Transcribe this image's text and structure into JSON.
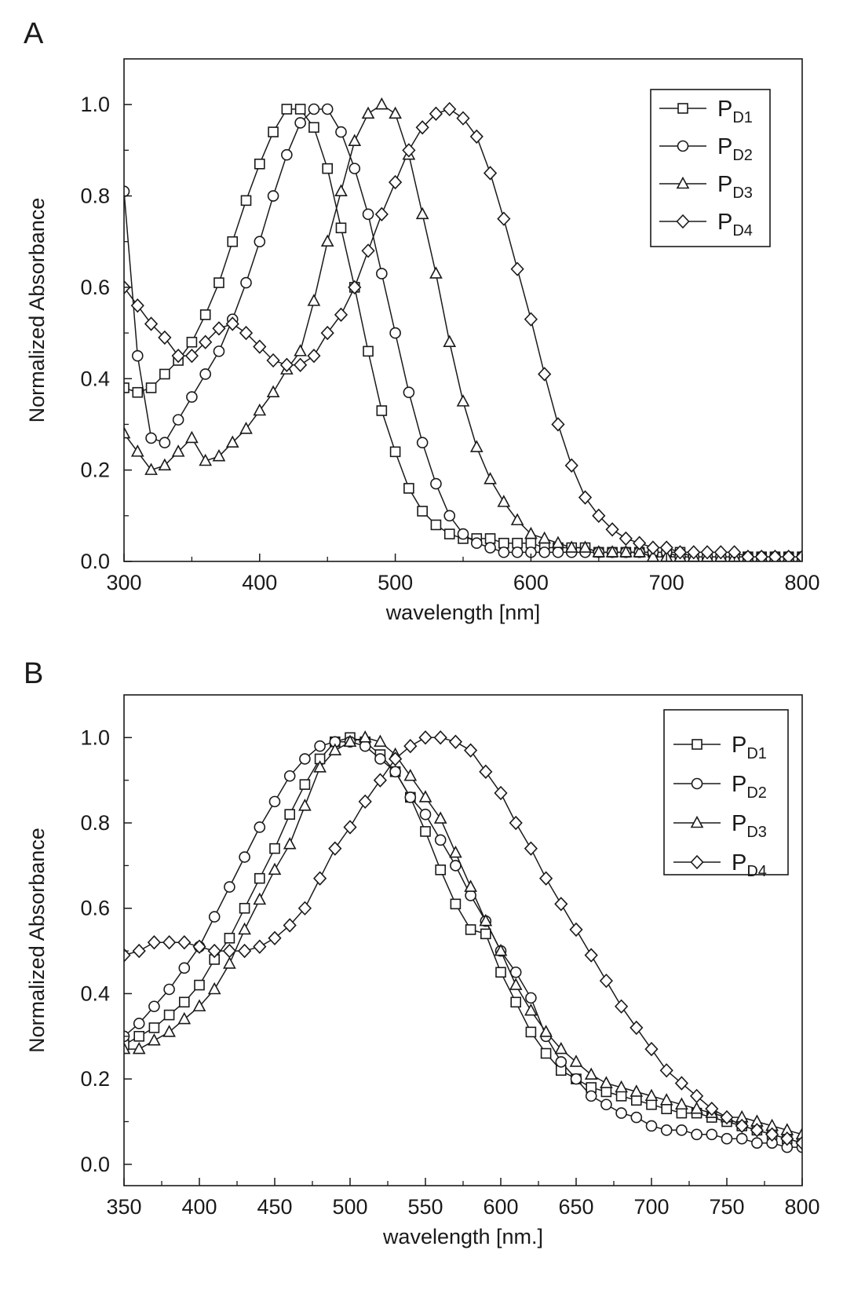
{
  "chart_data": [
    {
      "type": "line",
      "panel_label": "A",
      "xlabel": "wavelength [nm]",
      "ylabel": "Normalized Absorbance",
      "xlim": [
        300,
        800
      ],
      "ylim": [
        0.0,
        1.1
      ],
      "xticks": [
        "300",
        "400",
        "500",
        "600",
        "700",
        "800"
      ],
      "yticks": [
        "0.0",
        "0.2",
        "0.4",
        "0.6",
        "0.8",
        "1.0"
      ],
      "grid": false,
      "legend_position": "top-right",
      "series": [
        {
          "name": "P",
          "sub": "D1",
          "marker": "square",
          "x": [
            300,
            310,
            320,
            330,
            340,
            350,
            360,
            370,
            380,
            390,
            400,
            410,
            420,
            430,
            440,
            450,
            460,
            470,
            480,
            490,
            500,
            510,
            520,
            530,
            540,
            550,
            560,
            570,
            580,
            590,
            600,
            610,
            620,
            630,
            640,
            650,
            660,
            670,
            680,
            690,
            700,
            710,
            720,
            730,
            740,
            750,
            760,
            770,
            780,
            790,
            800
          ],
          "y": [
            0.38,
            0.37,
            0.38,
            0.41,
            0.44,
            0.48,
            0.54,
            0.61,
            0.7,
            0.79,
            0.87,
            0.94,
            0.99,
            0.99,
            0.95,
            0.86,
            0.73,
            0.6,
            0.46,
            0.33,
            0.24,
            0.16,
            0.11,
            0.08,
            0.06,
            0.05,
            0.05,
            0.05,
            0.04,
            0.04,
            0.04,
            0.03,
            0.03,
            0.03,
            0.03,
            0.02,
            0.02,
            0.02,
            0.02,
            0.02,
            0.02,
            0.02,
            0.01,
            0.01,
            0.01,
            0.01,
            0.01,
            0.01,
            0.01,
            0.01,
            0.01
          ]
        },
        {
          "name": "P",
          "sub": "D2",
          "marker": "circle",
          "x": [
            300,
            310,
            320,
            330,
            340,
            350,
            360,
            370,
            380,
            390,
            400,
            410,
            420,
            430,
            440,
            450,
            460,
            470,
            480,
            490,
            500,
            510,
            520,
            530,
            540,
            550,
            560,
            570,
            580,
            590,
            600,
            610,
            620,
            630,
            640,
            650,
            660,
            670,
            680,
            690,
            700,
            710,
            720,
            730,
            740,
            750,
            760,
            770,
            780,
            790,
            800
          ],
          "y": [
            0.81,
            0.45,
            0.27,
            0.26,
            0.31,
            0.36,
            0.41,
            0.46,
            0.53,
            0.61,
            0.7,
            0.8,
            0.89,
            0.96,
            0.99,
            0.99,
            0.94,
            0.86,
            0.76,
            0.63,
            0.5,
            0.37,
            0.26,
            0.17,
            0.1,
            0.06,
            0.04,
            0.03,
            0.02,
            0.02,
            0.02,
            0.02,
            0.02,
            0.02,
            0.02,
            0.02,
            0.02,
            0.02,
            0.02,
            0.02,
            0.02,
            0.01,
            0.01,
            0.01,
            0.01,
            0.01,
            0.01,
            0.01,
            0.01,
            0.01,
            0.01
          ]
        },
        {
          "name": "P",
          "sub": "D3",
          "marker": "triangle",
          "x": [
            300,
            310,
            320,
            330,
            340,
            350,
            360,
            370,
            380,
            390,
            400,
            410,
            420,
            430,
            440,
            450,
            460,
            470,
            480,
            490,
            500,
            510,
            520,
            530,
            540,
            550,
            560,
            570,
            580,
            590,
            600,
            610,
            620,
            630,
            640,
            650,
            660,
            670,
            680,
            690,
            700,
            710,
            720,
            730,
            740,
            750,
            760,
            770,
            780,
            790,
            800
          ],
          "y": [
            0.28,
            0.24,
            0.2,
            0.21,
            0.24,
            0.27,
            0.22,
            0.23,
            0.26,
            0.29,
            0.33,
            0.37,
            0.42,
            0.46,
            0.57,
            0.7,
            0.81,
            0.92,
            0.98,
            1.0,
            0.98,
            0.89,
            0.76,
            0.63,
            0.48,
            0.35,
            0.25,
            0.18,
            0.13,
            0.09,
            0.06,
            0.05,
            0.04,
            0.03,
            0.03,
            0.02,
            0.02,
            0.02,
            0.02,
            0.01,
            0.01,
            0.01,
            0.01,
            0.01,
            0.01,
            0.01,
            0.01,
            0.01,
            0.01,
            0.01,
            0.01
          ]
        },
        {
          "name": "P",
          "sub": "D4",
          "marker": "diamond",
          "x": [
            300,
            310,
            320,
            330,
            340,
            350,
            360,
            370,
            380,
            390,
            400,
            410,
            420,
            430,
            440,
            450,
            460,
            470,
            480,
            490,
            500,
            510,
            520,
            530,
            540,
            550,
            560,
            570,
            580,
            590,
            600,
            610,
            620,
            630,
            640,
            650,
            660,
            670,
            680,
            690,
            700,
            710,
            720,
            730,
            740,
            750,
            760,
            770,
            780,
            790,
            800
          ],
          "y": [
            0.6,
            0.56,
            0.52,
            0.49,
            0.45,
            0.45,
            0.48,
            0.51,
            0.52,
            0.5,
            0.47,
            0.44,
            0.43,
            0.43,
            0.45,
            0.5,
            0.54,
            0.6,
            0.68,
            0.76,
            0.83,
            0.9,
            0.95,
            0.98,
            0.99,
            0.97,
            0.93,
            0.85,
            0.75,
            0.64,
            0.53,
            0.41,
            0.3,
            0.21,
            0.14,
            0.1,
            0.07,
            0.05,
            0.04,
            0.03,
            0.03,
            0.02,
            0.02,
            0.02,
            0.02,
            0.02,
            0.01,
            0.01,
            0.01,
            0.01,
            0.01
          ]
        }
      ]
    },
    {
      "type": "line",
      "panel_label": "B",
      "xlabel": "wavelength [nm.]",
      "ylabel": "Normalized Absorbance",
      "xlim": [
        350,
        800
      ],
      "ylim": [
        -0.05,
        1.1
      ],
      "xticks": [
        "350",
        "400",
        "450",
        "500",
        "550",
        "600",
        "650",
        "700",
        "750",
        "800"
      ],
      "yticks": [
        "0.0",
        "0.2",
        "0.4",
        "0.6",
        "0.8",
        "1.0"
      ],
      "grid": false,
      "legend_position": "top-right",
      "series": [
        {
          "name": "P",
          "sub": "D1",
          "marker": "square",
          "x": [
            350,
            360,
            370,
            380,
            390,
            400,
            410,
            420,
            430,
            440,
            450,
            460,
            470,
            480,
            490,
            500,
            510,
            520,
            530,
            540,
            550,
            560,
            570,
            580,
            590,
            600,
            610,
            620,
            630,
            640,
            650,
            660,
            670,
            680,
            690,
            700,
            710,
            720,
            730,
            740,
            750,
            760,
            770,
            780,
            790,
            800
          ],
          "y": [
            0.28,
            0.3,
            0.32,
            0.35,
            0.38,
            0.42,
            0.48,
            0.53,
            0.6,
            0.67,
            0.74,
            0.82,
            0.89,
            0.95,
            0.99,
            1.0,
            0.99,
            0.96,
            0.92,
            0.86,
            0.78,
            0.69,
            0.61,
            0.55,
            0.54,
            0.45,
            0.38,
            0.31,
            0.26,
            0.22,
            0.2,
            0.18,
            0.17,
            0.16,
            0.15,
            0.14,
            0.13,
            0.12,
            0.12,
            0.11,
            0.1,
            0.09,
            0.08,
            0.07,
            0.06,
            0.05
          ]
        },
        {
          "name": "P",
          "sub": "D2",
          "marker": "circle",
          "x": [
            350,
            360,
            370,
            380,
            390,
            400,
            410,
            420,
            430,
            440,
            450,
            460,
            470,
            480,
            490,
            500,
            510,
            520,
            530,
            540,
            550,
            560,
            570,
            580,
            590,
            600,
            610,
            620,
            630,
            640,
            650,
            660,
            670,
            680,
            690,
            700,
            710,
            720,
            730,
            740,
            750,
            760,
            770,
            780,
            790,
            800
          ],
          "y": [
            0.3,
            0.33,
            0.37,
            0.41,
            0.46,
            0.51,
            0.58,
            0.65,
            0.72,
            0.79,
            0.85,
            0.91,
            0.95,
            0.98,
            0.99,
            0.99,
            0.98,
            0.95,
            0.92,
            0.86,
            0.82,
            0.76,
            0.7,
            0.63,
            0.57,
            0.5,
            0.45,
            0.39,
            0.3,
            0.24,
            0.2,
            0.16,
            0.14,
            0.12,
            0.11,
            0.09,
            0.08,
            0.08,
            0.07,
            0.07,
            0.06,
            0.06,
            0.05,
            0.05,
            0.04,
            0.04
          ]
        },
        {
          "name": "P",
          "sub": "D3",
          "marker": "triangle",
          "x": [
            350,
            360,
            370,
            380,
            390,
            400,
            410,
            420,
            430,
            440,
            450,
            460,
            470,
            480,
            490,
            500,
            510,
            520,
            530,
            540,
            550,
            560,
            570,
            580,
            590,
            600,
            610,
            620,
            630,
            640,
            650,
            660,
            670,
            680,
            690,
            700,
            710,
            720,
            730,
            740,
            750,
            760,
            770,
            780,
            790,
            800
          ],
          "y": [
            0.27,
            0.27,
            0.29,
            0.31,
            0.34,
            0.37,
            0.41,
            0.47,
            0.55,
            0.62,
            0.69,
            0.75,
            0.84,
            0.93,
            0.97,
            0.99,
            1.0,
            0.99,
            0.96,
            0.91,
            0.86,
            0.81,
            0.73,
            0.65,
            0.57,
            0.5,
            0.42,
            0.36,
            0.31,
            0.27,
            0.24,
            0.21,
            0.19,
            0.18,
            0.17,
            0.16,
            0.15,
            0.14,
            0.13,
            0.12,
            0.11,
            0.11,
            0.1,
            0.09,
            0.08,
            0.07
          ]
        },
        {
          "name": "P",
          "sub": "D4",
          "marker": "diamond",
          "x": [
            350,
            360,
            370,
            380,
            390,
            400,
            410,
            420,
            430,
            440,
            450,
            460,
            470,
            480,
            490,
            500,
            510,
            520,
            530,
            540,
            550,
            560,
            570,
            580,
            590,
            600,
            610,
            620,
            630,
            640,
            650,
            660,
            670,
            680,
            690,
            700,
            710,
            720,
            730,
            740,
            750,
            760,
            770,
            780,
            790,
            800
          ],
          "y": [
            0.49,
            0.5,
            0.52,
            0.52,
            0.52,
            0.51,
            0.5,
            0.5,
            0.5,
            0.51,
            0.53,
            0.56,
            0.6,
            0.67,
            0.74,
            0.79,
            0.85,
            0.9,
            0.95,
            0.98,
            1.0,
            1.0,
            0.99,
            0.97,
            0.92,
            0.87,
            0.8,
            0.74,
            0.67,
            0.61,
            0.55,
            0.49,
            0.43,
            0.37,
            0.32,
            0.27,
            0.22,
            0.19,
            0.16,
            0.13,
            0.11,
            0.09,
            0.08,
            0.07,
            0.06,
            0.05
          ]
        }
      ]
    }
  ]
}
